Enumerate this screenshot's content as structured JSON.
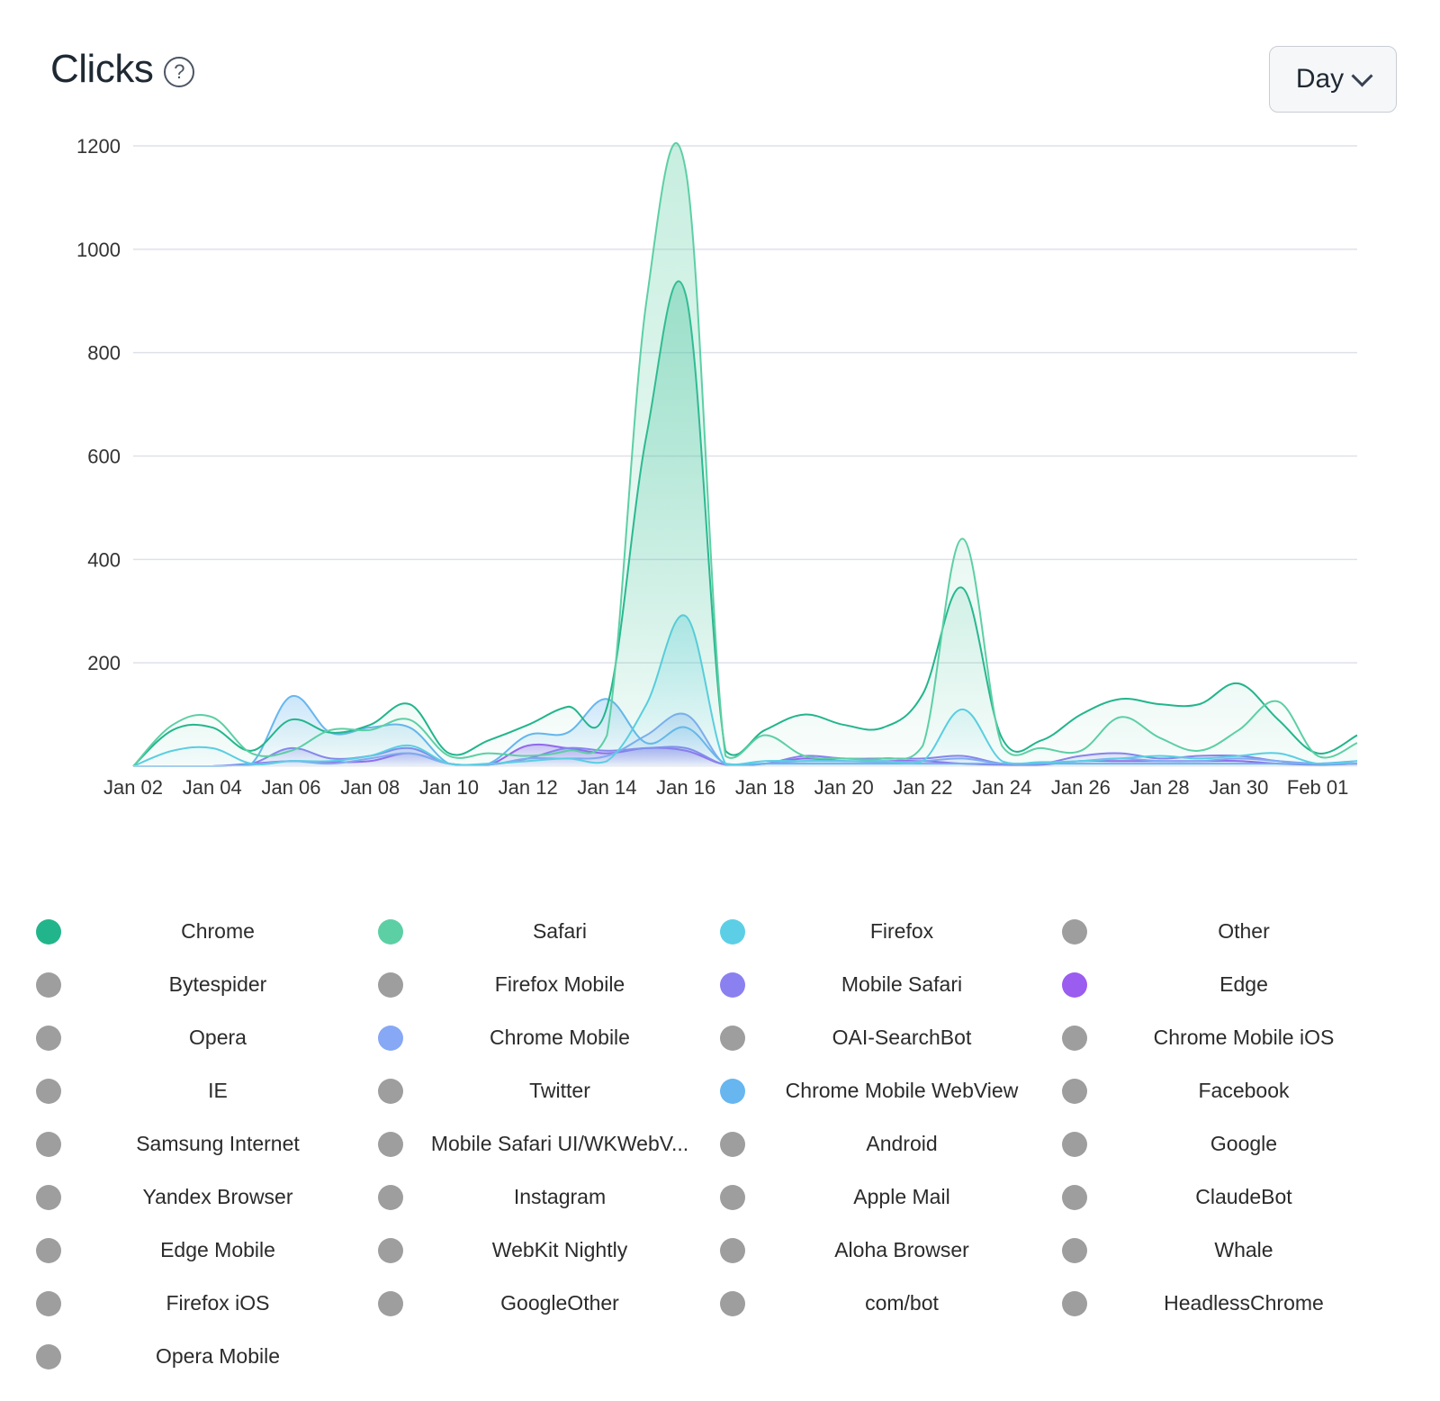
{
  "header": {
    "title": "Clicks",
    "help_glyph": "?",
    "interval_label": "Day"
  },
  "chart_data": {
    "type": "area",
    "title": "Clicks",
    "xlabel": "",
    "ylabel": "",
    "ylim": [
      0,
      1200
    ],
    "yticks": [
      200,
      400,
      600,
      800,
      1000,
      1200
    ],
    "grid": true,
    "x": [
      "Jan 02",
      "Jan 03",
      "Jan 04",
      "Jan 05",
      "Jan 06",
      "Jan 07",
      "Jan 08",
      "Jan 09",
      "Jan 10",
      "Jan 11",
      "Jan 12",
      "Jan 13",
      "Jan 14",
      "Jan 15",
      "Jan 16",
      "Jan 17",
      "Jan 18",
      "Jan 19",
      "Jan 20",
      "Jan 21",
      "Jan 22",
      "Jan 23",
      "Jan 24",
      "Jan 25",
      "Jan 26",
      "Jan 27",
      "Jan 28",
      "Jan 29",
      "Jan 30",
      "Jan 31",
      "Feb 01",
      "Feb 02"
    ],
    "xtick_labels": [
      "Jan 02",
      "Jan 04",
      "Jan 06",
      "Jan 08",
      "Jan 10",
      "Jan 12",
      "Jan 14",
      "Jan 16",
      "Jan 18",
      "Jan 20",
      "Jan 22",
      "Jan 24",
      "Jan 26",
      "Jan 28",
      "Jan 30",
      "Feb 01"
    ],
    "series": [
      {
        "name": "Safari",
        "color": "#5dcfa5",
        "values": [
          0,
          80,
          95,
          25,
          30,
          70,
          70,
          90,
          20,
          25,
          20,
          30,
          60,
          900,
          1150,
          20,
          60,
          20,
          15,
          15,
          40,
          440,
          40,
          35,
          30,
          95,
          55,
          30,
          70,
          125,
          20,
          45
        ]
      },
      {
        "name": "Chrome",
        "color": "#22b58c",
        "values": [
          0,
          70,
          75,
          30,
          90,
          65,
          80,
          120,
          25,
          50,
          80,
          115,
          115,
          640,
          910,
          30,
          70,
          100,
          80,
          75,
          140,
          345,
          55,
          50,
          100,
          130,
          120,
          120,
          160,
          90,
          25,
          60
        ]
      },
      {
        "name": "Firefox",
        "color": "#5ccfe6",
        "values": [
          0,
          30,
          35,
          5,
          10,
          10,
          20,
          40,
          5,
          5,
          10,
          15,
          10,
          120,
          290,
          5,
          10,
          10,
          10,
          10,
          10,
          110,
          10,
          8,
          10,
          15,
          20,
          15,
          20,
          25,
          5,
          10
        ]
      },
      {
        "name": "Chrome Mobile WebView",
        "color": "#67b6f0",
        "values": [
          0,
          0,
          0,
          5,
          135,
          65,
          75,
          75,
          5,
          5,
          60,
          65,
          130,
          45,
          75,
          5,
          5,
          5,
          5,
          5,
          5,
          5,
          5,
          5,
          5,
          5,
          5,
          5,
          5,
          5,
          5,
          10
        ]
      },
      {
        "name": "Chrome Mobile",
        "color": "#86a8f5",
        "values": [
          0,
          0,
          0,
          3,
          10,
          5,
          15,
          25,
          5,
          3,
          15,
          15,
          20,
          60,
          100,
          3,
          5,
          10,
          10,
          8,
          10,
          15,
          5,
          5,
          10,
          15,
          10,
          10,
          15,
          10,
          5,
          5
        ]
      },
      {
        "name": "Mobile Safari",
        "color": "#8b80f0",
        "values": [
          0,
          0,
          0,
          5,
          35,
          15,
          20,
          35,
          5,
          3,
          15,
          35,
          30,
          35,
          35,
          3,
          5,
          20,
          15,
          15,
          15,
          20,
          5,
          5,
          20,
          25,
          15,
          20,
          20,
          10,
          3,
          5
        ]
      },
      {
        "name": "Edge",
        "color": "#9b5cf0",
        "values": [
          0,
          0,
          0,
          5,
          10,
          8,
          10,
          25,
          5,
          3,
          40,
          35,
          25,
          35,
          30,
          3,
          5,
          15,
          10,
          10,
          10,
          5,
          3,
          3,
          10,
          10,
          10,
          10,
          10,
          5,
          3,
          5
        ]
      }
    ]
  },
  "legend": [
    {
      "label": "Chrome",
      "color": "#22b58c"
    },
    {
      "label": "Safari",
      "color": "#5dcfa5"
    },
    {
      "label": "Firefox",
      "color": "#5ccfe6"
    },
    {
      "label": "Other",
      "color": "#9e9e9e"
    },
    {
      "label": "Bytespider",
      "color": "#9e9e9e"
    },
    {
      "label": "Firefox Mobile",
      "color": "#9e9e9e"
    },
    {
      "label": "Mobile Safari",
      "color": "#8b80f0"
    },
    {
      "label": "Edge",
      "color": "#9b5cf0"
    },
    {
      "label": "Opera",
      "color": "#9e9e9e"
    },
    {
      "label": "Chrome Mobile",
      "color": "#86a8f5"
    },
    {
      "label": "OAI-SearchBot",
      "color": "#9e9e9e"
    },
    {
      "label": "Chrome Mobile iOS",
      "color": "#9e9e9e"
    },
    {
      "label": "IE",
      "color": "#9e9e9e"
    },
    {
      "label": "Twitter",
      "color": "#9e9e9e"
    },
    {
      "label": "Chrome Mobile WebView",
      "color": "#67b6f0"
    },
    {
      "label": "Facebook",
      "color": "#9e9e9e"
    },
    {
      "label": "Samsung Internet",
      "color": "#9e9e9e"
    },
    {
      "label": "Mobile Safari UI/WKWebV...",
      "color": "#9e9e9e"
    },
    {
      "label": "Android",
      "color": "#9e9e9e"
    },
    {
      "label": "Google",
      "color": "#9e9e9e"
    },
    {
      "label": "Yandex Browser",
      "color": "#9e9e9e"
    },
    {
      "label": "Instagram",
      "color": "#9e9e9e"
    },
    {
      "label": "Apple Mail",
      "color": "#9e9e9e"
    },
    {
      "label": "ClaudeBot",
      "color": "#9e9e9e"
    },
    {
      "label": "Edge Mobile",
      "color": "#9e9e9e"
    },
    {
      "label": "WebKit Nightly",
      "color": "#9e9e9e"
    },
    {
      "label": "Aloha Browser",
      "color": "#9e9e9e"
    },
    {
      "label": "Whale",
      "color": "#9e9e9e"
    },
    {
      "label": "Firefox iOS",
      "color": "#9e9e9e"
    },
    {
      "label": "GoogleOther",
      "color": "#9e9e9e"
    },
    {
      "label": "com/bot",
      "color": "#9e9e9e"
    },
    {
      "label": "HeadlessChrome",
      "color": "#9e9e9e"
    },
    {
      "label": "Opera Mobile",
      "color": "#9e9e9e"
    }
  ]
}
